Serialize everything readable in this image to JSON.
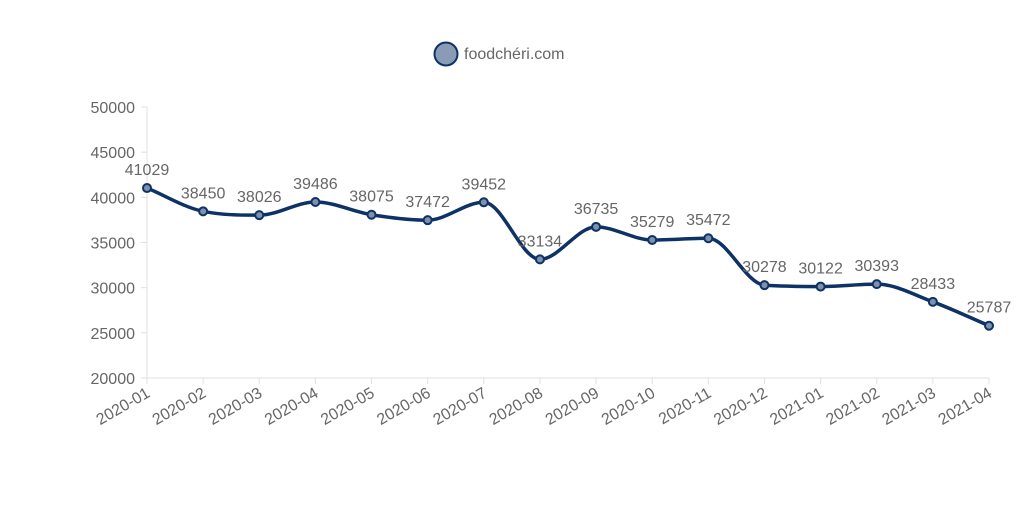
{
  "chart_data": {
    "type": "line",
    "title": "",
    "xlabel": "",
    "ylabel": "",
    "categories": [
      "2020-01",
      "2020-02",
      "2020-03",
      "2020-04",
      "2020-05",
      "2020-06",
      "2020-07",
      "2020-08",
      "2020-09",
      "2020-10",
      "2020-11",
      "2020-12",
      "2021-01",
      "2021-02",
      "2021-03",
      "2021-04"
    ],
    "series": [
      {
        "name": "foodchéri.com",
        "values": [
          41029,
          38450,
          38026,
          39486,
          38075,
          37472,
          39452,
          33134,
          36735,
          35279,
          35472,
          30278,
          30122,
          30393,
          28433,
          25787
        ]
      }
    ],
    "ylim": [
      20000,
      50000
    ],
    "yticks": [
      20000,
      25000,
      30000,
      35000,
      40000,
      45000,
      50000
    ],
    "grid": false,
    "smooth": true,
    "data_labels": true,
    "legend_position": "top-center",
    "colors": {
      "line": "#0d3266",
      "point_fill": "#7f90ad",
      "point_stroke": "#0d3266",
      "legend_fill": "#8a9bb6",
      "axis": "#e0e0e0",
      "text": "#666666"
    }
  }
}
